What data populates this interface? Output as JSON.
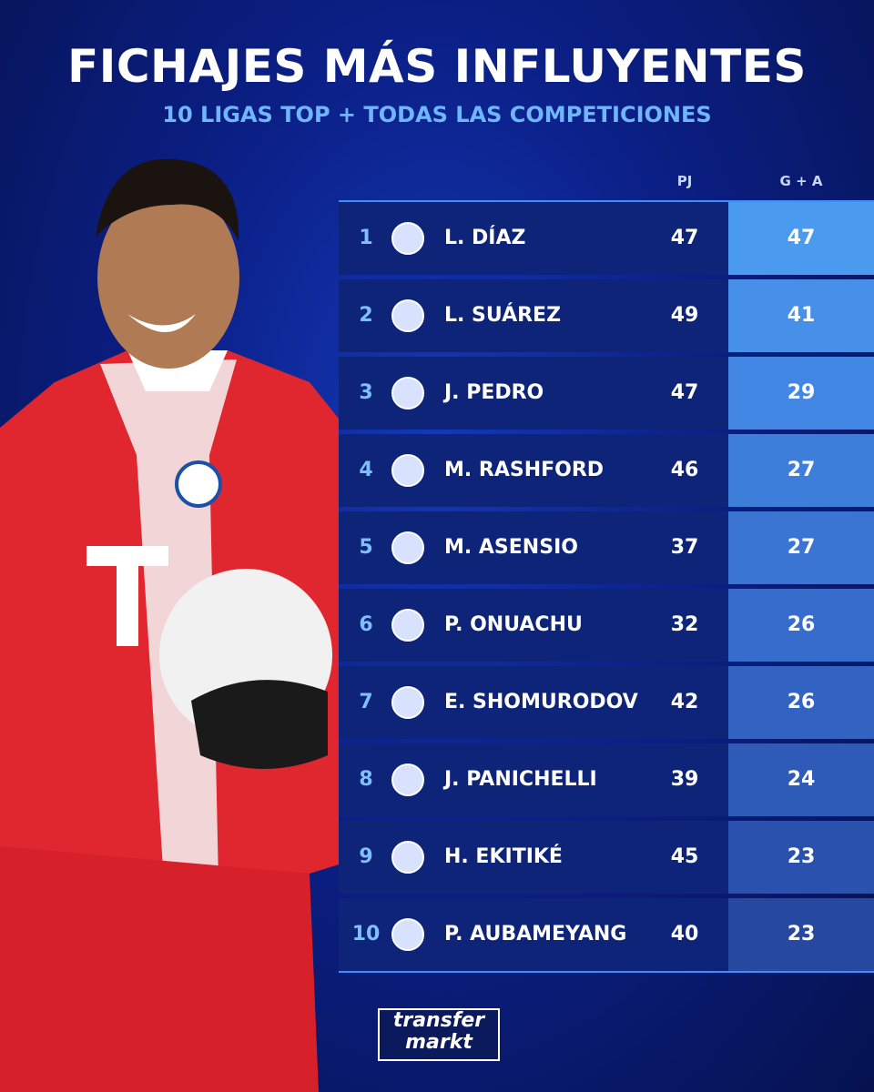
{
  "header": {
    "title": "FICHAJES MÁS INFLUYENTES",
    "subtitle": "10 LIGAS TOP + TODAS LAS COMPETICIONES"
  },
  "table": {
    "columns": [
      "PJ",
      "G + A"
    ],
    "rows": [
      [
        "1",
        "L. DÍAZ",
        "47",
        "47"
      ],
      [
        "2",
        "L. SUÁREZ",
        "49",
        "41"
      ],
      [
        "3",
        "J. PEDRO",
        "47",
        "29"
      ],
      [
        "4",
        "M. RASHFORD",
        "46",
        "27"
      ],
      [
        "5",
        "M. ASENSIO",
        "37",
        "27"
      ],
      [
        "6",
        "P. ONUACHU",
        "32",
        "26"
      ],
      [
        "7",
        "E. SHOMURODOV",
        "42",
        "26"
      ],
      [
        "8",
        "J. PANICHELLI",
        "39",
        "24"
      ],
      [
        "9",
        "H. EKITIKÉ",
        "45",
        "23"
      ],
      [
        "10",
        "P. AUBAMEYANG",
        "40",
        "23"
      ]
    ]
  },
  "logo": {
    "line1": "transfer",
    "line2": "markt"
  }
}
